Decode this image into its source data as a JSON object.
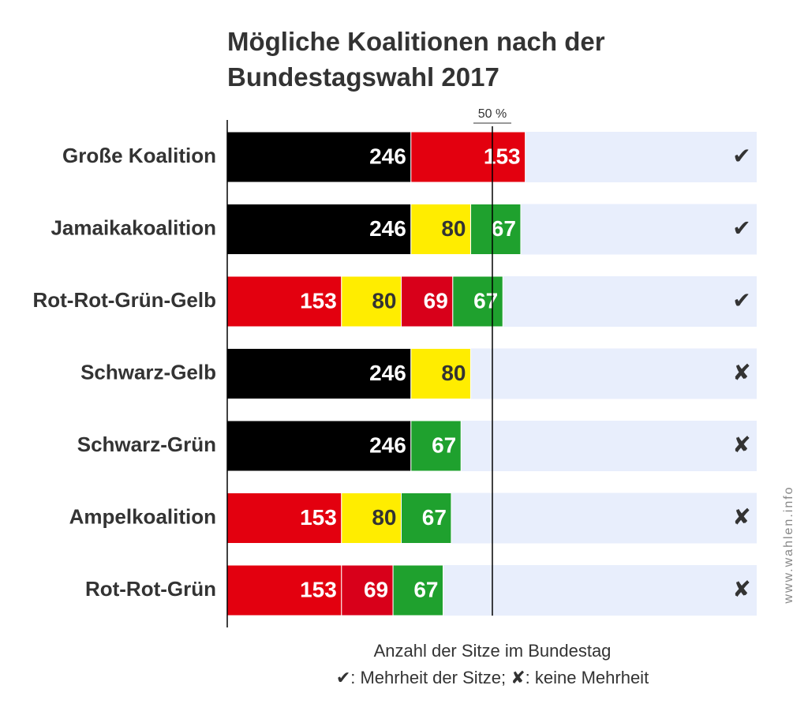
{
  "chart_data": {
    "type": "stacked-bar-horizontal",
    "title": "Mögliche Koalitionen nach der Bundestagswahl 2017",
    "categories": [
      "Große Koalition",
      "Jamaikakoalition",
      "Rot-Rot-Grün-Gelb",
      "Schwarz-Gelb",
      "Schwarz-Grün",
      "Ampelkoalition",
      "Rot-Rot-Grün"
    ],
    "series": [
      {
        "color": "#000000",
        "values": [
          246,
          246,
          null,
          246,
          246,
          null,
          null
        ]
      },
      {
        "color": "#e3000f",
        "values": [
          153,
          null,
          153,
          null,
          null,
          153,
          153
        ]
      },
      {
        "color": "#ffed00",
        "values": [
          null,
          80,
          80,
          80,
          null,
          80,
          null
        ]
      },
      {
        "color": "#d8001a",
        "values": [
          null,
          null,
          69,
          null,
          null,
          null,
          69
        ]
      },
      {
        "color": "#1fa12e",
        "values": [
          null,
          67,
          67,
          null,
          67,
          67,
          67
        ]
      }
    ],
    "xlim": [
      0,
      709
    ],
    "majority_line": {
      "value": 355,
      "label": "50 %"
    },
    "majority_marks": [
      "✔",
      "✔",
      "✔",
      "✘",
      "✘",
      "✘",
      "✘"
    ],
    "xlabel": "Anzahl der Sitze im Bundestag",
    "note": "✔: Mehrheit der Sitze; ✘: keine Mehrheit",
    "source": "www.wahlen.info",
    "background_color": "#e8eefc"
  }
}
